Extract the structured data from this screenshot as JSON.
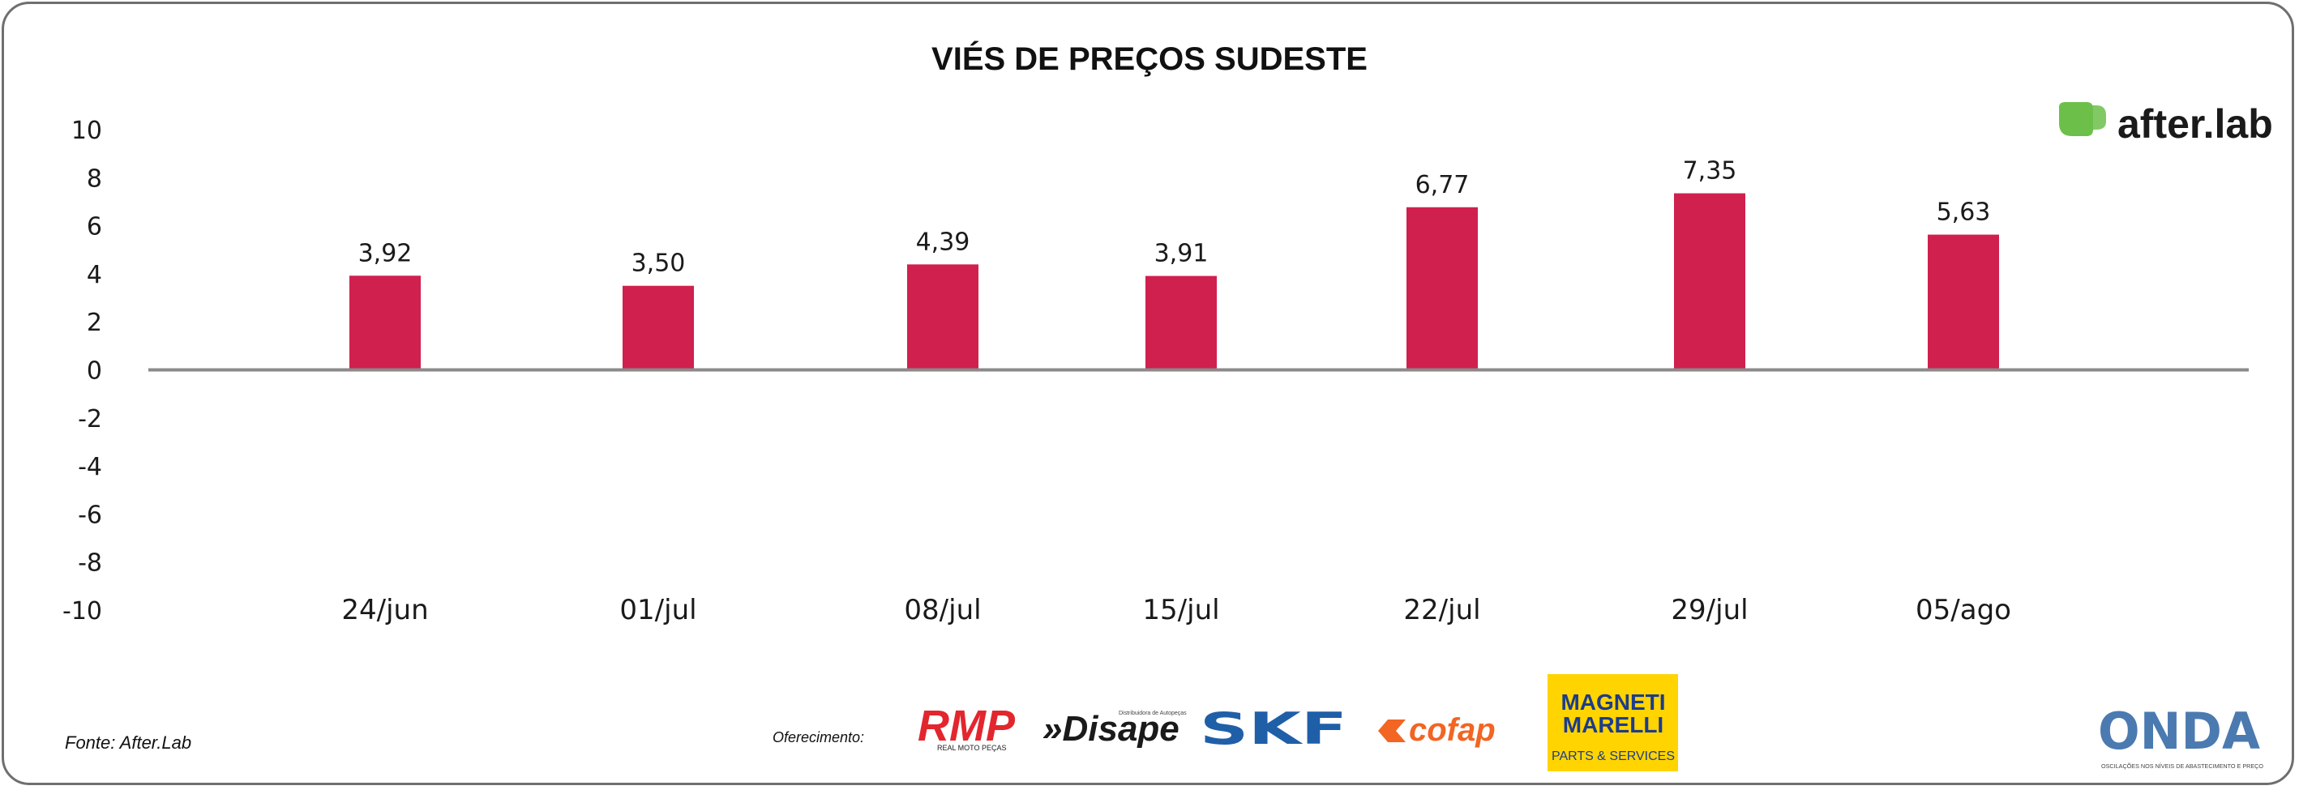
{
  "chart_data": {
    "type": "bar",
    "title": "VIÉS DE PREÇOS SUDESTE",
    "categories": [
      "24/jun",
      "01/jul",
      "08/jul",
      "15/jul",
      "22/jul",
      "29/jul",
      "05/ago"
    ],
    "values": [
      3.92,
      3.5,
      4.39,
      3.91,
      6.77,
      7.35,
      5.63
    ],
    "value_labels": [
      "3,92",
      "3,50",
      "4,39",
      "3,91",
      "6,77",
      "7,35",
      "5,63"
    ],
    "yticks": [
      "10",
      "8",
      "6",
      "4",
      "2",
      "0",
      "-2",
      "-4",
      "-6",
      "-8",
      "-10"
    ],
    "ylim": [
      -10,
      10
    ],
    "xlabel": "",
    "ylabel": "",
    "grid": false,
    "legend": "none",
    "bar_color": "#d0204e",
    "axis_color": "#8a8a8a"
  },
  "source_text": "Fonte: After.Lab",
  "sponsor_label": "Oferecimento:",
  "logos": {
    "brand": {
      "name": "after.lab",
      "icon": "afterlab-leaf-icon",
      "color": "#6cc04a"
    },
    "rmp": {
      "text": "RMP",
      "subtext": "REAL MOTO PEÇAS",
      "color": "#e3262e"
    },
    "disape": {
      "text": "»Disape",
      "subtext": "Distribuidora de Autopeças",
      "color": "#1a1a1a"
    },
    "skf": {
      "text": "SKF",
      "color": "#1f5fa8"
    },
    "cofap": {
      "text": "cofap",
      "color": "#f26522"
    },
    "magneti_marelli": {
      "line1": "MAGNETI",
      "line2": "MARELLI",
      "subtext": "PARTS & SERVICES",
      "bg": "#ffd400",
      "color": "#1d3c8a"
    },
    "onda": {
      "text": "ONDA",
      "subtext": "OSCILAÇÕES NOS NÍVEIS DE ABASTECIMENTO E PREÇO",
      "color": "#4a7ab0"
    }
  }
}
